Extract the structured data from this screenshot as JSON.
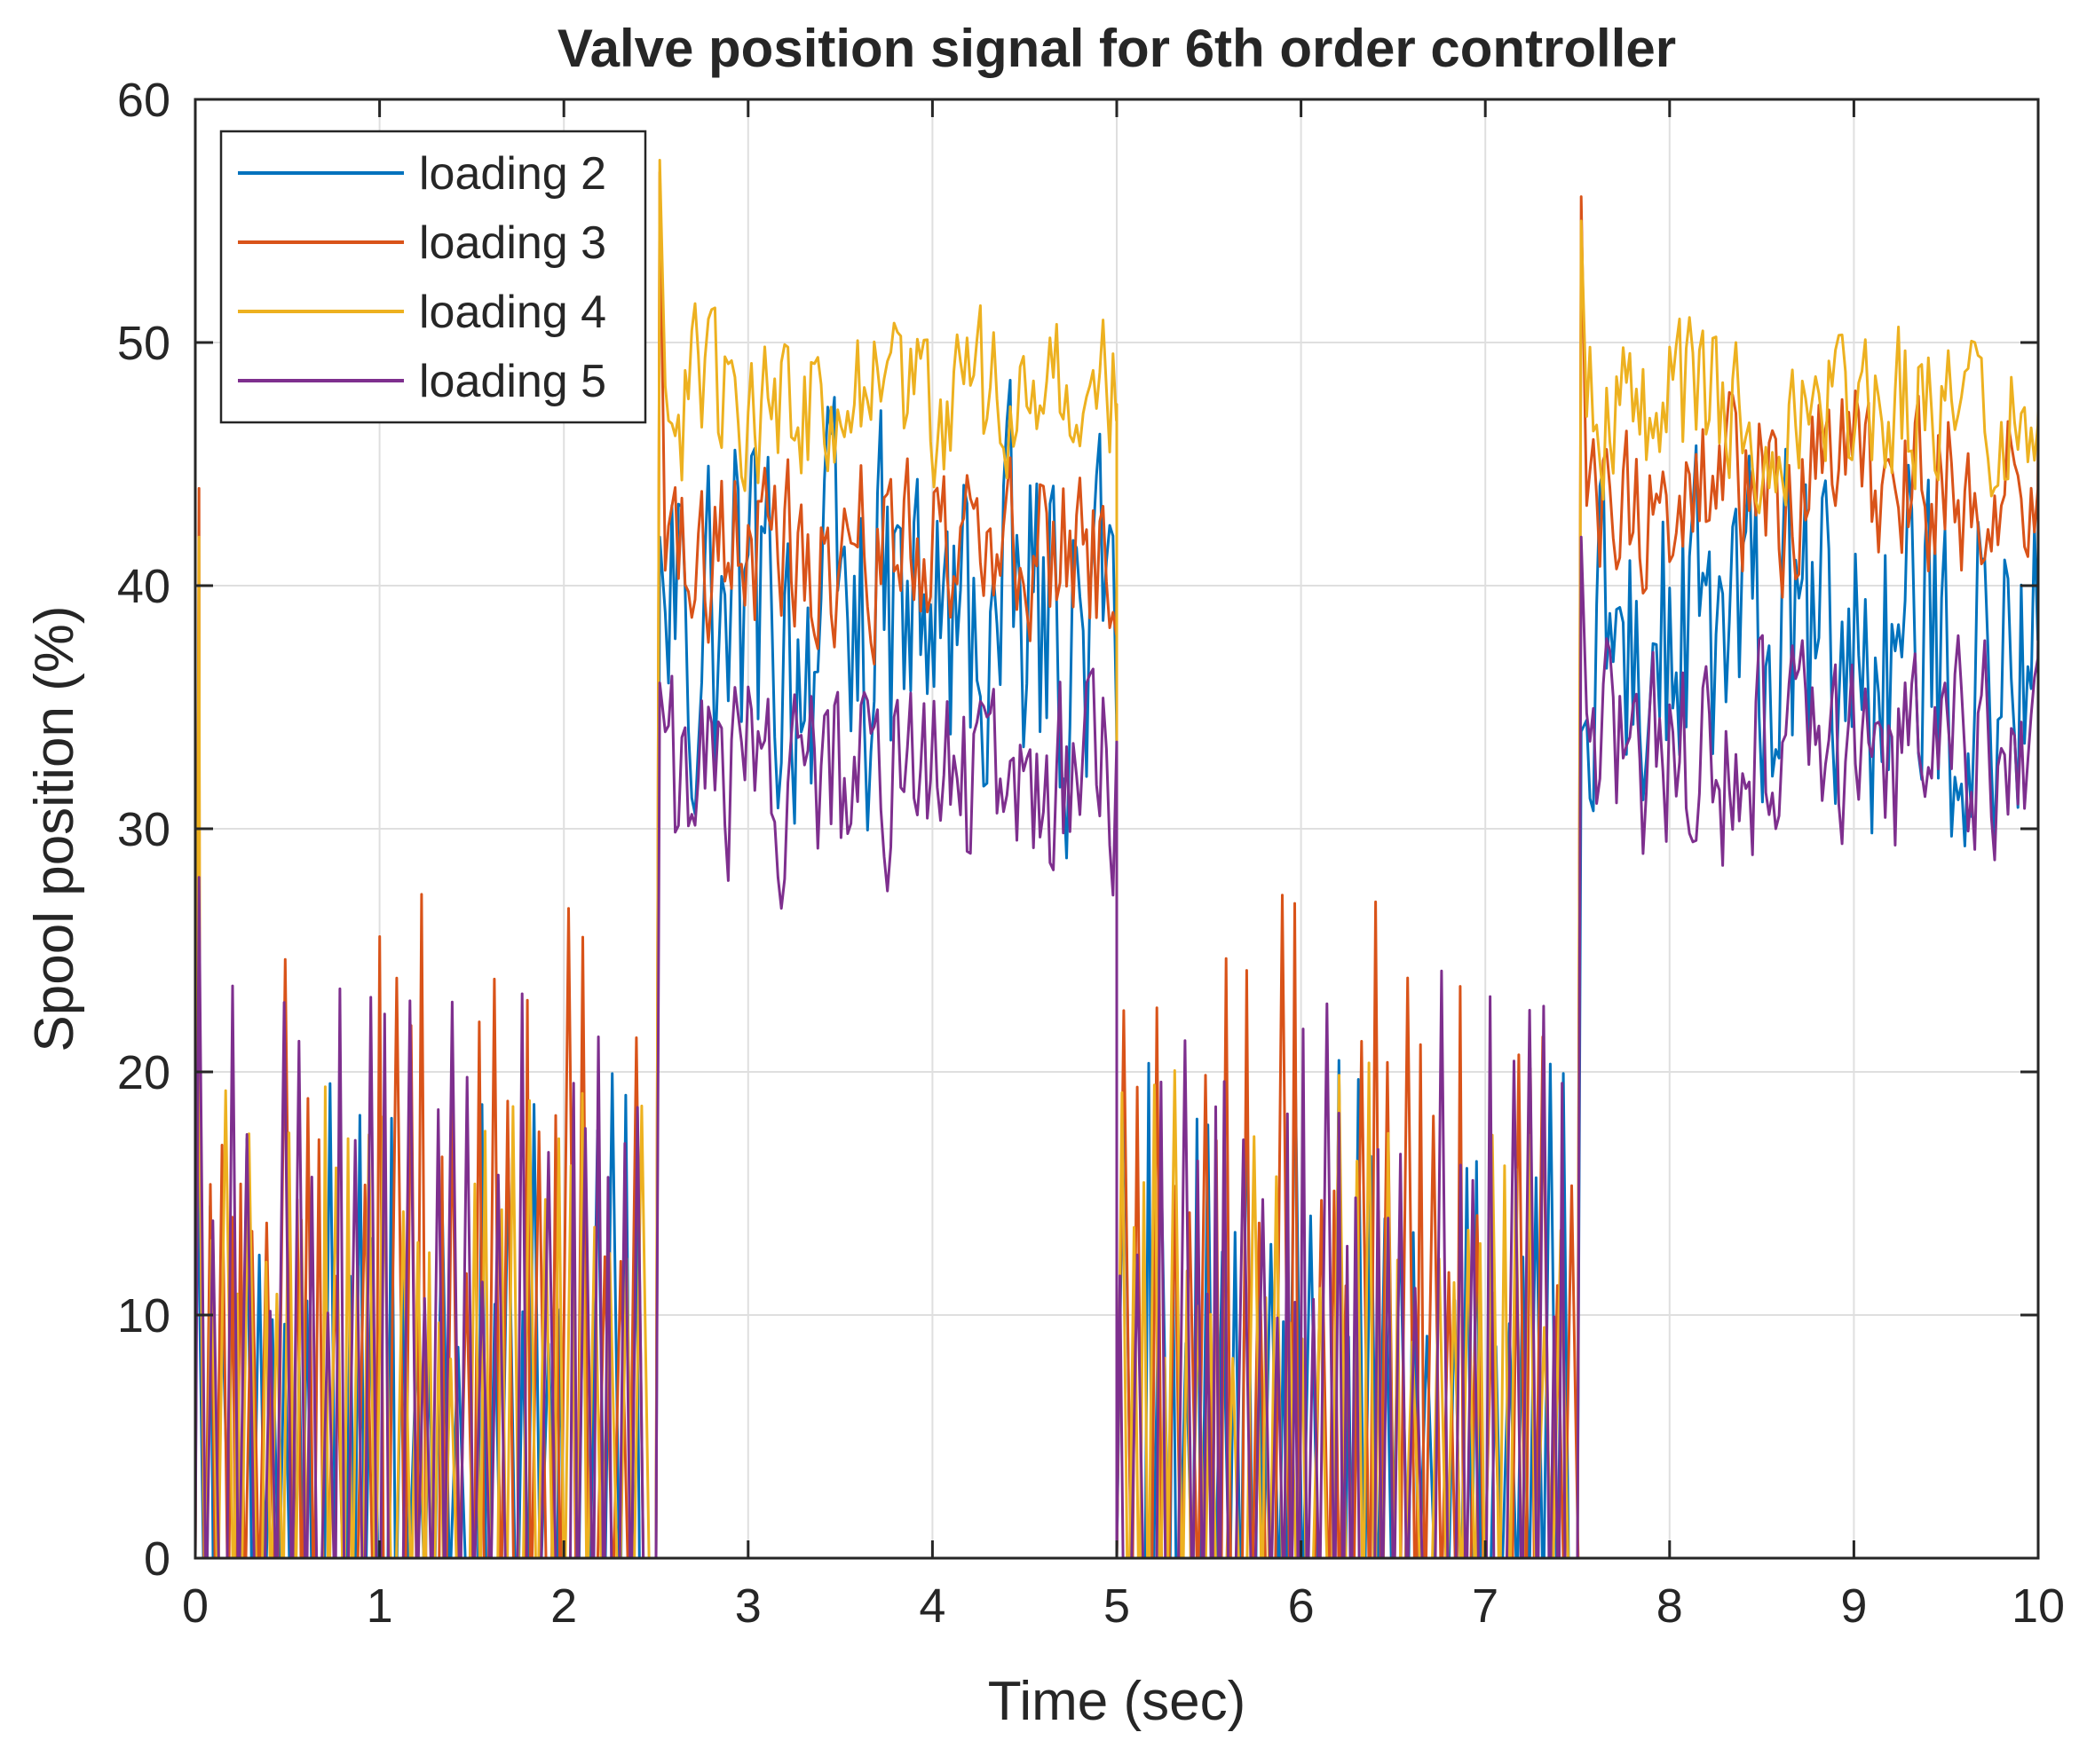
{
  "chart_data": {
    "type": "line",
    "title": "Valve position signal for 6th order controller",
    "xlabel": "Time (sec)",
    "ylabel": "Spool position (%)",
    "xlim": [
      0,
      10
    ],
    "ylim": [
      0,
      60
    ],
    "xticks": [
      "0",
      "1",
      "2",
      "3",
      "4",
      "5",
      "6",
      "7",
      "8",
      "9",
      "10"
    ],
    "yticks": [
      "0",
      "10",
      "20",
      "30",
      "40",
      "50",
      "60"
    ],
    "grid": true,
    "legend_position": "top-left",
    "phases": [
      {
        "start": 0.0,
        "end": 2.5,
        "mode": "low"
      },
      {
        "start": 2.5,
        "end": 5.0,
        "mode": "high"
      },
      {
        "start": 5.0,
        "end": 7.5,
        "mode": "low"
      },
      {
        "start": 7.5,
        "end": 10.0,
        "mode": "high"
      }
    ],
    "series": [
      {
        "name": "loading 2",
        "color": "#0072BD",
        "high_levels": [
          38,
          37
        ],
        "high_spread": 7,
        "low_peak": 18,
        "start_spike": 36,
        "step_peaks": [
          42,
          34
        ]
      },
      {
        "name": "loading 3",
        "color": "#D95319",
        "high_levels": [
          41.5,
          44
        ],
        "high_spread": 3.5,
        "low_peak": 24,
        "start_spike": 44,
        "step_peaks": [
          57,
          56
        ]
      },
      {
        "name": "loading 4",
        "color": "#EDB120",
        "high_levels": [
          47.5,
          47.5
        ],
        "high_spread": 3,
        "low_peak": 18,
        "start_spike": 42,
        "step_peaks": [
          57.5,
          55
        ]
      },
      {
        "name": "loading 5",
        "color": "#7E2F8E",
        "high_levels": [
          32,
          33
        ],
        "high_spread": 4,
        "low_peak": 21,
        "start_spike": 28,
        "step_peaks": [
          36,
          42
        ]
      }
    ]
  }
}
